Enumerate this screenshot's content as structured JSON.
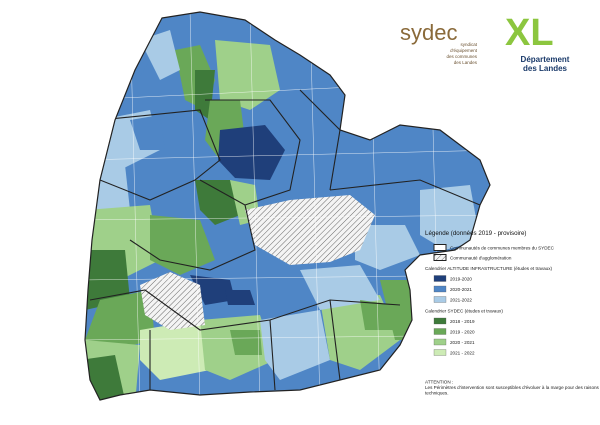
{
  "logos": {
    "sydec": {
      "name": "sydec",
      "tagline": [
        "syndicat",
        "d'équipement",
        "des communes",
        "des Landes"
      ]
    },
    "departement": {
      "mark": "XL",
      "name": [
        "Département",
        "des Landes"
      ]
    }
  },
  "legend": {
    "title": "Légende (données 2019 - provisoire)",
    "boundaries": [
      {
        "label": "Communautés de communes membres du SYDEC"
      },
      {
        "label": "Communauté d'agglomération"
      }
    ],
    "sections": [
      {
        "heading": "Calendrier ALTITUDE INFRASTRUCTURE (études et travaux)",
        "items": [
          {
            "label": "2019-2020",
            "color": "#1f3f7a"
          },
          {
            "label": "2020-2021",
            "color": "#4f86c6"
          },
          {
            "label": "2021-2022",
            "color": "#a9cbe6"
          }
        ]
      },
      {
        "heading": "Calendrier SYDEC (études et travaux)",
        "items": [
          {
            "label": "2018 - 2019",
            "color": "#3e7a3a"
          },
          {
            "label": "2019 - 2020",
            "color": "#6aa858"
          },
          {
            "label": "2020 - 2021",
            "color": "#9fd08a"
          },
          {
            "label": "2021 - 2022",
            "color": "#cdebb5"
          }
        ]
      }
    ],
    "note": {
      "title": "ATTENTION :",
      "text": [
        "Les Périmètres d'intervention sont susceptibles d'évoluer à la marge pour des raisons",
        "techniques."
      ]
    }
  }
}
